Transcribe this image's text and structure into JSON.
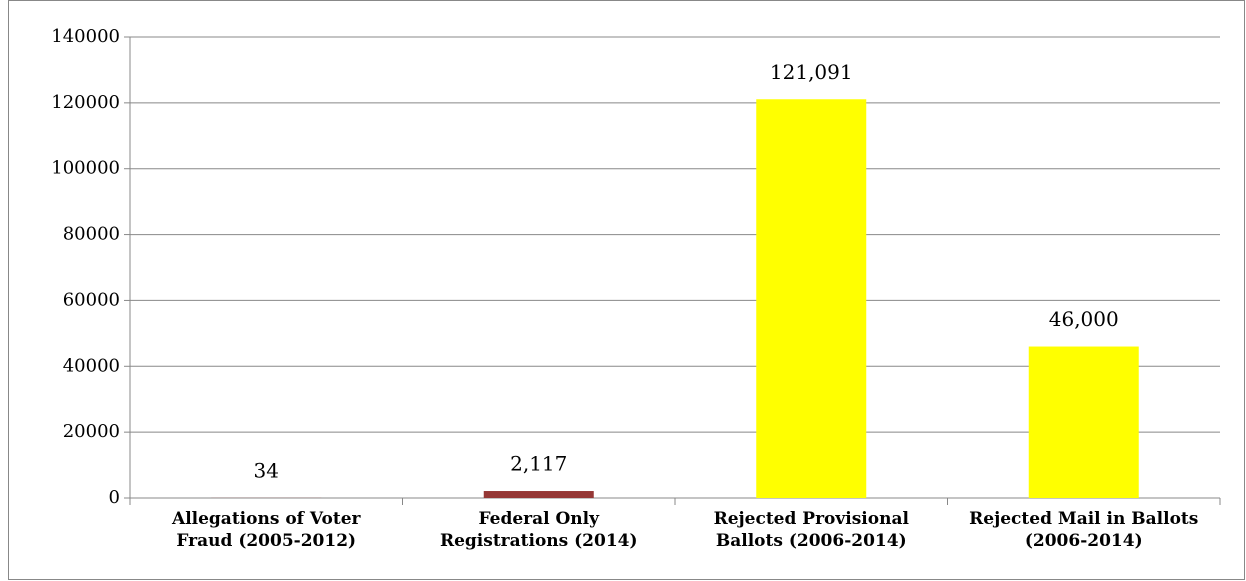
{
  "chart_data": {
    "type": "bar",
    "categories": [
      "Allegations of Voter Fraud (2005-2012)",
      "Federal Only Registrations (2014)",
      "Rejected Provisional Ballots (2006-2014)",
      "Rejected Mail in Ballots (2006-2014)"
    ],
    "values": [
      34,
      2117,
      121091,
      46000
    ],
    "value_labels": [
      "34",
      "2,117",
      "121,091",
      "46,000"
    ],
    "colors": [
      "#953735",
      "#953735",
      "#ffff00",
      "#ffff00"
    ],
    "ylim": [
      0,
      140000
    ],
    "yticks": [
      0,
      20000,
      40000,
      60000,
      80000,
      100000,
      120000,
      140000
    ],
    "grid": true
  }
}
